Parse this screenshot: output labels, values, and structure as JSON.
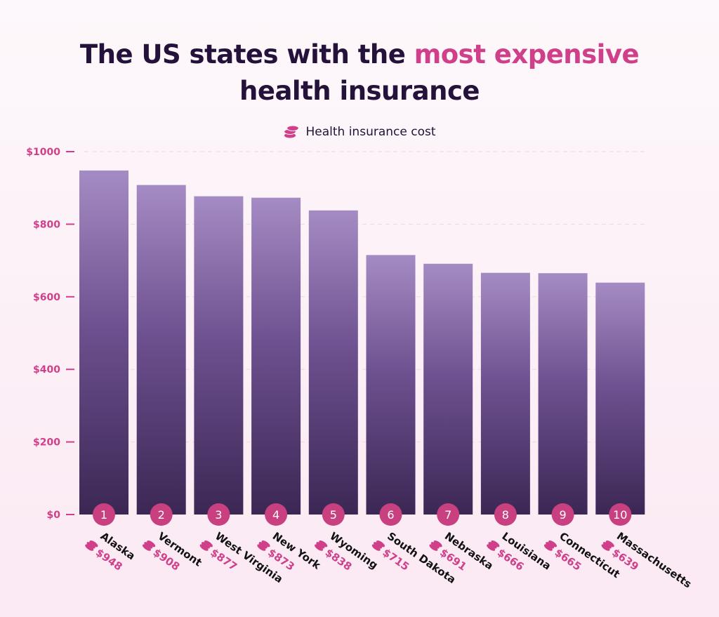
{
  "title": {
    "part1": "The US states with the ",
    "highlight": "most expensive",
    "part2": "health insurance"
  },
  "legend": {
    "label": "Health insurance cost",
    "icon": "coins-icon"
  },
  "colors": {
    "accent": "#d0408a",
    "title": "#24123a",
    "bar": "#6a4a8a"
  },
  "chart_data": {
    "type": "bar",
    "title": "The US states with the most expensive health insurance",
    "categories": [
      "Alaska",
      "Vermont",
      "West Virginia",
      "New York",
      "Wyoming",
      "South Dakota",
      "Nebraska",
      "Louisiana",
      "Connecticut",
      "Massachusetts"
    ],
    "ranks": [
      "1",
      "2",
      "3",
      "4",
      "5",
      "6",
      "7",
      "8",
      "9",
      "10"
    ],
    "series": [
      {
        "name": "Health insurance cost",
        "values": [
          948,
          908,
          877,
          873,
          838,
          715,
          691,
          666,
          665,
          639
        ]
      }
    ],
    "value_labels": [
      "$948",
      "$908",
      "$877",
      "$873",
      "$838",
      "$715",
      "$691",
      "$666",
      "$665",
      "$639"
    ],
    "ylim": [
      0,
      1000
    ],
    "yticks": [
      0,
      200,
      400,
      600,
      800,
      1000
    ],
    "ytick_labels": [
      "$0",
      "$200",
      "$400",
      "$600",
      "$800",
      "$1000"
    ],
    "grid": true,
    "legend_position": "top-center"
  }
}
